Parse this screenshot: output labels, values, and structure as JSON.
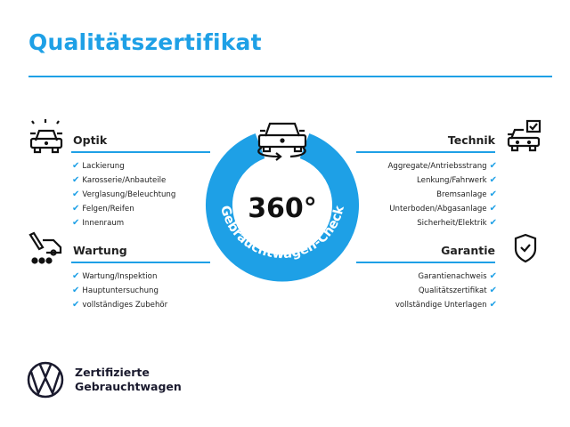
{
  "title": "Qualitätszertifikat",
  "center": {
    "value": "360°",
    "arc_text": "Gebrauchtwagen-Check"
  },
  "accent": "#1ea0e6",
  "sections": {
    "optik": {
      "title": "Optik",
      "icon": "car-lights-icon",
      "items": [
        "Lackierung",
        "Karosserie/Anbauteile",
        "Verglasung/Beleuchtung",
        "Felgen/Reifen",
        "Innenraum"
      ]
    },
    "wartung": {
      "title": "Wartung",
      "icon": "service-truck-icon",
      "items": [
        "Wartung/Inspektion",
        "Hauptuntersuchung",
        "vollständiges Zubehör"
      ]
    },
    "technik": {
      "title": "Technik",
      "icon": "car-checkbox-icon",
      "items": [
        "Aggregate/Antriebsstrang",
        "Lenkung/Fahrwerk",
        "Bremsanlage",
        "Unterboden/Abgasanlage",
        "Sicherheit/Elektrik"
      ]
    },
    "garantie": {
      "title": "Garantie",
      "icon": "shield-check-icon",
      "items": [
        "Garantienachweis",
        "Qualitätszertifikat",
        "vollständige Unterlagen"
      ]
    }
  },
  "check_mark": "✔",
  "footer": {
    "line1": "Zertifizierte",
    "line2": "Gebrauchtwagen",
    "logo": "VW"
  }
}
